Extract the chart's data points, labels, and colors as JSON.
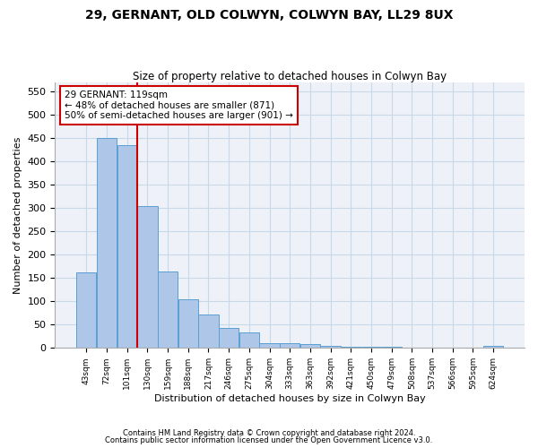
{
  "title_line1": "29, GERNANT, OLD COLWYN, COLWYN BAY, LL29 8UX",
  "title_line2": "Size of property relative to detached houses in Colwyn Bay",
  "xlabel": "Distribution of detached houses by size in Colwyn Bay",
  "ylabel": "Number of detached properties",
  "footer_line1": "Contains HM Land Registry data © Crown copyright and database right 2024.",
  "footer_line2": "Contains public sector information licensed under the Open Government Licence v3.0.",
  "bar_labels": [
    "43sqm",
    "72sqm",
    "101sqm",
    "130sqm",
    "159sqm",
    "188sqm",
    "217sqm",
    "246sqm",
    "275sqm",
    "304sqm",
    "333sqm",
    "363sqm",
    "392sqm",
    "421sqm",
    "450sqm",
    "479sqm",
    "508sqm",
    "537sqm",
    "566sqm",
    "595sqm",
    "624sqm"
  ],
  "bar_values": [
    163,
    450,
    435,
    305,
    165,
    105,
    72,
    43,
    33,
    10,
    10,
    8,
    5,
    3,
    2,
    2,
    1,
    1,
    1,
    1,
    4
  ],
  "bar_color": "#aec6e8",
  "bar_edgecolor": "#5a9fd4",
  "red_line_x": 2.5,
  "annotation_line1": "29 GERNANT: 119sqm",
  "annotation_line2": "← 48% of detached houses are smaller (871)",
  "annotation_line3": "50% of semi-detached houses are larger (901) →",
  "annotation_box_color": "#ffffff",
  "annotation_box_edgecolor": "#cc0000",
  "ylim": [
    0,
    570
  ],
  "yticks": [
    0,
    50,
    100,
    150,
    200,
    250,
    300,
    350,
    400,
    450,
    500,
    550
  ],
  "grid_color": "#c8d8e8",
  "background_color": "#eef2f8"
}
